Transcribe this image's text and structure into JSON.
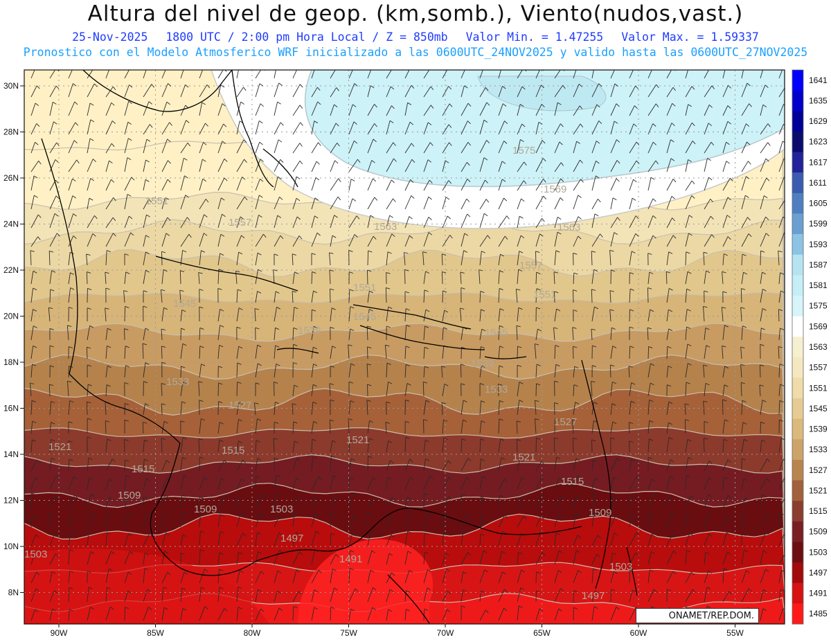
{
  "header": {
    "title": "Altura del nivel de geop. (km,somb.), Viento(nudos,vast.)",
    "date": "25-Nov-2025",
    "time": "1800 UTC / 2:00 pm Hora Local / Z = 850mb",
    "vmin": "Valor Min. = 1.47255",
    "vmax": "Valor Max. = 1.59337",
    "model": "Pronostico con el Modelo Atmosferico WRF inicializado a las 0600UTC_24NOV2025 y valido hasta las  0600UTC_27NOV2025"
  },
  "map": {
    "lat_labels": [
      "30N",
      "28N",
      "26N",
      "24N",
      "22N",
      "20N",
      "18N",
      "16N",
      "14N",
      "12N",
      "10N",
      "8N"
    ],
    "lon_labels": [
      "90W",
      "85W",
      "80W",
      "75W",
      "70W",
      "65W",
      "60W",
      "55W"
    ],
    "contour_labels": [
      "1575",
      "1569",
      "1563",
      "1563",
      "1557",
      "1557",
      "1551",
      "1551",
      "1551",
      "1545",
      "1545",
      "1545",
      "1539",
      "1539",
      "1533",
      "1533",
      "1527",
      "1527",
      "1521",
      "1521",
      "1521",
      "1515",
      "1515",
      "1515",
      "1509",
      "1509",
      "1509",
      "1503",
      "1503",
      "1503",
      "1497",
      "1497",
      "1491"
    ],
    "credit": "ONAMET/REP.DOM."
  },
  "colorbar": {
    "levels": [
      "1641",
      "1635",
      "1629",
      "1623",
      "1617",
      "1611",
      "1605",
      "1599",
      "1593",
      "1587",
      "1581",
      "1575",
      "1569",
      "1563",
      "1557",
      "1551",
      "1545",
      "1539",
      "1533",
      "1527",
      "1521",
      "1515",
      "1509",
      "1503",
      "1497",
      "1491",
      "1485"
    ],
    "colors": [
      "#0000ff",
      "#0000cc",
      "#000099",
      "#0b0b6e",
      "#22229a",
      "#3a5bb0",
      "#4f7fc0",
      "#6a9fd2",
      "#8cc4e6",
      "#b5e3f2",
      "#c5eef7",
      "#d6f4fa",
      "#ffffff",
      "#f7f0d0",
      "#f5e8c0",
      "#efdcaa",
      "#e6cc93",
      "#dbb97c",
      "#cca36a",
      "#b9854e",
      "#a3603c",
      "#8b3d2e",
      "#7a1f24",
      "#6d0f12",
      "#a30a0a",
      "#d61212",
      "#ff1a1a"
    ],
    "band_colors": [
      "#fff1c5",
      "#f3e4b7",
      "#ecd8a4",
      "#e2c78c",
      "#d7b478",
      "#c89b62",
      "#b5824c",
      "#a66138",
      "#8c3a2c",
      "#741c22",
      "#6a0d10",
      "#b90c0c",
      "#d81515",
      "#ee1a1a"
    ],
    "cyan": "#cdf2f7"
  }
}
